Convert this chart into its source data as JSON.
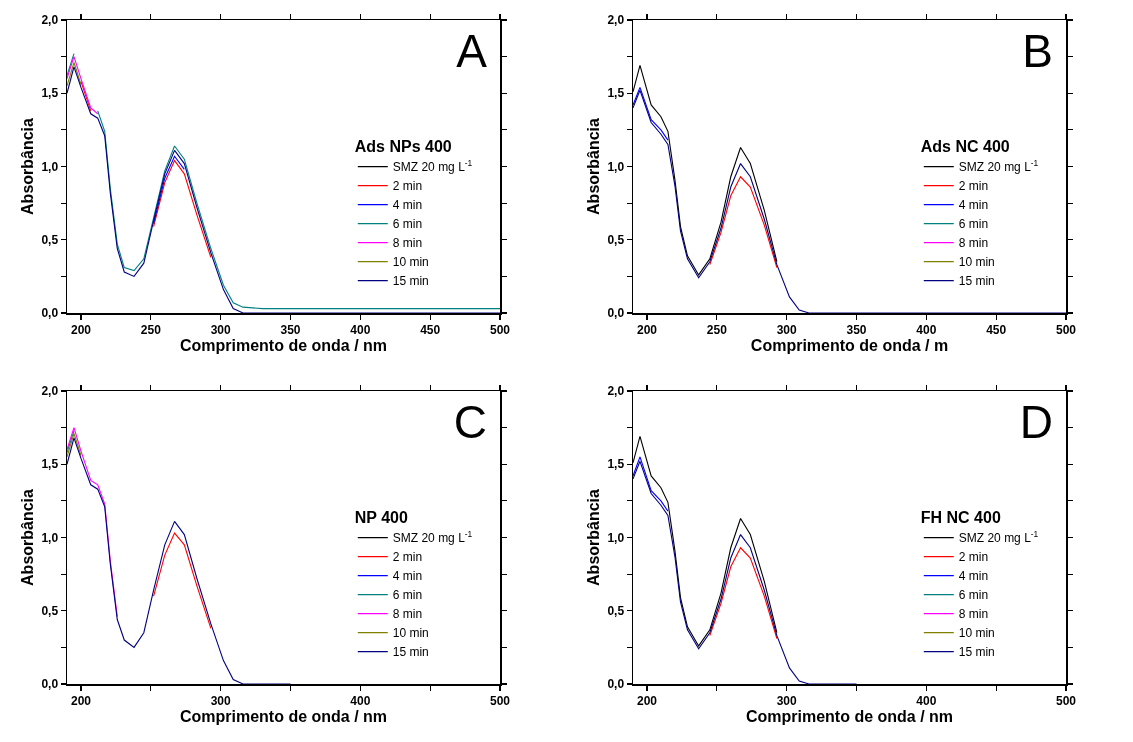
{
  "chart_data": [
    {
      "type": "line",
      "title": "A",
      "legend_title": "Ads NPs 400",
      "xlabel": "Comprimento de onda / nm",
      "ylabel": "Absorbância",
      "legend": "right",
      "grid": false,
      "line_style": "solid",
      "marker": "none",
      "x": [
        190,
        195,
        200,
        207,
        212,
        217,
        221,
        226,
        231,
        238,
        245,
        252,
        260,
        267,
        274,
        283,
        293,
        302,
        309,
        316,
        330,
        500
      ],
      "xlim": [
        190,
        500
      ],
      "xticks": [
        {
          "value": 200,
          "label": "200"
        },
        {
          "value": 250,
          "label": "250"
        },
        {
          "value": 300,
          "label": "300"
        },
        {
          "value": 350,
          "label": "350"
        },
        {
          "value": 400,
          "label": "400"
        },
        {
          "value": 450,
          "label": "450"
        },
        {
          "value": 500,
          "label": "500"
        }
      ],
      "ylim": [
        0,
        2
      ],
      "yticks": [
        {
          "value": 0,
          "label": "0,0"
        },
        {
          "value": 0.25,
          "label": null
        },
        {
          "value": 0.5,
          "label": "0,5"
        },
        {
          "value": 0.75,
          "label": null
        },
        {
          "value": 1,
          "label": "1,0"
        },
        {
          "value": 1.25,
          "label": null
        },
        {
          "value": 1.5,
          "label": "1,5"
        },
        {
          "value": 1.75,
          "label": null
        },
        {
          "value": 2,
          "label": "2,0"
        }
      ],
      "series": [
        {
          "name": "SMZ 20 mg L$^{-1}$",
          "color": "#000000",
          "values": [
            null,
            null,
            null,
            null,
            null,
            null,
            null,
            null,
            null,
            null,
            null,
            null,
            null,
            null,
            null,
            null,
            null,
            null,
            null,
            null,
            null,
            null
          ]
        },
        {
          "name": "2 min",
          "color": "#ff0000",
          "values": [
            null,
            null,
            1.58,
            1.38,
            null,
            null,
            null,
            null,
            null,
            null,
            null,
            0.59,
            0.89,
            1.04,
            0.95,
            0.67,
            0.38,
            null,
            null,
            null,
            null,
            null
          ]
        },
        {
          "name": "4 min",
          "color": "#0000ff",
          "values": [
            null,
            null,
            null,
            null,
            null,
            null,
            null,
            null,
            null,
            null,
            null,
            0.61,
            0.92,
            1.07,
            0.98,
            null,
            null,
            null,
            null,
            null,
            null,
            null
          ]
        },
        {
          "name": "6 min",
          "color": "#008080",
          "values": [
            1.62,
            1.77,
            null,
            null,
            1.38,
            1.24,
            0.85,
            0.47,
            0.31,
            0.29,
            0.37,
            0.65,
            0.97,
            1.14,
            1.05,
            0.75,
            0.44,
            0.19,
            0.07,
            0.04,
            0.03,
            0.03
          ]
        },
        {
          "name": "8 min",
          "color": "#ff00ff",
          "values": [
            1.6,
            1.75,
            1.6,
            1.4,
            1.36,
            null,
            null,
            null,
            null,
            null,
            null,
            null,
            null,
            null,
            null,
            null,
            null,
            null,
            null,
            null,
            null,
            null
          ]
        },
        {
          "name": "10 min",
          "color": "#808000",
          "values": [
            1.55,
            1.71,
            1.56,
            null,
            null,
            null,
            null,
            null,
            null,
            null,
            null,
            null,
            null,
            null,
            null,
            null,
            null,
            null,
            null,
            null,
            null,
            null
          ]
        },
        {
          "name": "15 min",
          "color": "#000080",
          "values": [
            1.5,
            1.68,
            1.54,
            1.36,
            1.33,
            1.21,
            0.82,
            0.44,
            0.28,
            0.25,
            0.34,
            0.63,
            0.95,
            1.11,
            1.02,
            0.72,
            0.41,
            0.16,
            0.03,
            0,
            0,
            0
          ]
        }
      ]
    },
    {
      "type": "line",
      "title": "B",
      "legend_title": "Ads NC 400",
      "xlabel": "Comprimento de onda / m",
      "ylabel": "Absorbância",
      "legend": "right",
      "grid": false,
      "line_style": "solid",
      "marker": "none",
      "x": [
        190,
        195,
        203,
        210,
        215,
        220,
        224,
        229,
        237,
        245,
        253,
        260,
        267,
        274,
        284,
        293,
        302,
        309,
        316,
        330,
        500
      ],
      "xlim": [
        190,
        500
      ],
      "xticks": [
        {
          "value": 200,
          "label": "200"
        },
        {
          "value": 250,
          "label": "250"
        },
        {
          "value": 300,
          "label": "300"
        },
        {
          "value": 350,
          "label": "350"
        },
        {
          "value": 400,
          "label": "400"
        },
        {
          "value": 450,
          "label": "450"
        },
        {
          "value": 500,
          "label": "500"
        }
      ],
      "ylim": [
        0,
        2
      ],
      "yticks": [
        {
          "value": 0,
          "label": "0,0"
        },
        {
          "value": 0.25,
          "label": null
        },
        {
          "value": 0.5,
          "label": "0,5"
        },
        {
          "value": 0.75,
          "label": null
        },
        {
          "value": 1,
          "label": "1,0"
        },
        {
          "value": 1.25,
          "label": null
        },
        {
          "value": 1.5,
          "label": "1,5"
        },
        {
          "value": 1.75,
          "label": null
        },
        {
          "value": 2,
          "label": "2,0"
        }
      ],
      "series": [
        {
          "name": "SMZ 20 mg L$^{-1}$",
          "color": "#000000",
          "values": [
            1.51,
            1.69,
            1.42,
            1.34,
            1.24,
            0.91,
            0.59,
            0.39,
            0.26,
            0.37,
            0.62,
            0.93,
            1.13,
            1.02,
            0.7,
            0.35,
            null,
            null,
            null,
            null,
            null
          ]
        },
        {
          "name": "2 min",
          "color": "#ff0000",
          "values": [
            null,
            null,
            null,
            null,
            null,
            null,
            null,
            null,
            null,
            0.33,
            0.55,
            0.8,
            0.93,
            0.86,
            0.6,
            0.31,
            null,
            null,
            null,
            null,
            null
          ]
        },
        {
          "name": "4 min",
          "color": "#0000ff",
          "values": [
            1.42,
            1.54,
            1.32,
            1.25,
            1.18,
            null,
            null,
            null,
            null,
            null,
            null,
            null,
            null,
            null,
            null,
            null,
            null,
            null,
            null,
            null,
            null
          ]
        },
        {
          "name": "6 min",
          "color": "#008080",
          "values": [
            null,
            null,
            null,
            null,
            null,
            null,
            null,
            null,
            null,
            null,
            null,
            null,
            null,
            null,
            null,
            null,
            null,
            null,
            null,
            null,
            null
          ]
        },
        {
          "name": "8 min",
          "color": "#ff00ff",
          "values": [
            null,
            null,
            null,
            null,
            null,
            null,
            null,
            null,
            null,
            null,
            null,
            null,
            null,
            null,
            null,
            null,
            null,
            null,
            null,
            null,
            null
          ]
        },
        {
          "name": "10 min",
          "color": "#808000",
          "values": [
            null,
            null,
            null,
            null,
            null,
            null,
            null,
            null,
            null,
            null,
            null,
            null,
            null,
            null,
            null,
            null,
            null,
            null,
            null,
            null,
            null
          ]
        },
        {
          "name": "15 min",
          "color": "#000080",
          "values": [
            1.4,
            1.52,
            1.3,
            1.22,
            1.15,
            0.87,
            0.56,
            0.37,
            0.24,
            0.35,
            0.58,
            0.86,
            1.02,
            0.93,
            0.64,
            0.33,
            0.11,
            0.02,
            0,
            0,
            0
          ]
        }
      ]
    },
    {
      "type": "line",
      "title": "C",
      "legend_title": "NP 400",
      "xlabel": "Comprimento de onda / nm",
      "ylabel": "Absorbância",
      "legend": "right",
      "grid": false,
      "line_style": "solid",
      "marker": "none",
      "x": [
        190,
        195,
        200,
        207,
        212,
        217,
        221,
        226,
        231,
        238,
        245,
        252,
        260,
        267,
        274,
        283,
        293,
        302,
        309,
        316,
        330,
        350
      ],
      "xlim": [
        190,
        500
      ],
      "xticks": [
        {
          "value": 200,
          "label": "200"
        },
        {
          "value": 250,
          "label": null
        },
        {
          "value": 300,
          "label": "300"
        },
        {
          "value": 350,
          "label": null
        },
        {
          "value": 400,
          "label": "400"
        },
        {
          "value": 450,
          "label": null
        },
        {
          "value": 500,
          "label": "500"
        }
      ],
      "ylim": [
        0,
        2
      ],
      "yticks": [
        {
          "value": 0,
          "label": "0,0"
        },
        {
          "value": 0.25,
          "label": null
        },
        {
          "value": 0.5,
          "label": "0,5"
        },
        {
          "value": 0.75,
          "label": null
        },
        {
          "value": 1,
          "label": "1,0"
        },
        {
          "value": 1.25,
          "label": null
        },
        {
          "value": 1.5,
          "label": "1,5"
        },
        {
          "value": 1.75,
          "label": null
        },
        {
          "value": 2,
          "label": "2,0"
        }
      ],
      "series": [
        {
          "name": "SMZ 20 mg L$^{-1}$",
          "color": "#000000",
          "values": [
            null,
            null,
            null,
            null,
            null,
            null,
            null,
            null,
            null,
            null,
            null,
            null,
            null,
            null,
            null,
            null,
            null,
            null,
            null,
            null,
            null,
            null
          ]
        },
        {
          "name": "2 min",
          "color": "#ff0000",
          "values": [
            null,
            null,
            null,
            null,
            null,
            null,
            null,
            null,
            null,
            null,
            null,
            0.6,
            0.88,
            1.03,
            0.95,
            0.67,
            0.38,
            null,
            null,
            null,
            null,
            null
          ]
        },
        {
          "name": "4 min",
          "color": "#0000ff",
          "values": [
            null,
            null,
            null,
            null,
            null,
            null,
            null,
            null,
            null,
            null,
            null,
            null,
            null,
            null,
            null,
            null,
            null,
            null,
            null,
            null,
            null,
            null
          ]
        },
        {
          "name": "6 min",
          "color": "#008080",
          "values": [
            1.58,
            1.73,
            null,
            null,
            null,
            null,
            null,
            null,
            null,
            null,
            null,
            null,
            null,
            null,
            null,
            null,
            null,
            null,
            null,
            null,
            null,
            null
          ]
        },
        {
          "name": "8 min",
          "color": "#ff00ff",
          "values": [
            1.6,
            1.75,
            1.59,
            1.39,
            1.36,
            1.23,
            0.84,
            0.46,
            null,
            null,
            null,
            null,
            null,
            null,
            null,
            null,
            null,
            null,
            null,
            null,
            null,
            null
          ]
        },
        {
          "name": "10 min",
          "color": "#808000",
          "values": [
            1.55,
            1.71,
            1.56,
            null,
            null,
            null,
            null,
            null,
            null,
            null,
            null,
            null,
            null,
            null,
            null,
            null,
            null,
            null,
            null,
            null,
            null,
            null
          ]
        },
        {
          "name": "15 min",
          "color": "#000080",
          "values": [
            1.5,
            1.68,
            1.54,
            1.36,
            1.33,
            1.21,
            0.82,
            0.44,
            0.3,
            0.25,
            0.35,
            0.64,
            0.95,
            1.11,
            1.02,
            0.72,
            0.41,
            0.16,
            0.03,
            0,
            0,
            0
          ]
        }
      ]
    },
    {
      "type": "line",
      "title": "D",
      "legend_title": "FH NC 400",
      "xlabel": "Comprimento de onda / nm",
      "ylabel": "Absorbância",
      "legend": "right",
      "grid": false,
      "line_style": "solid",
      "marker": "none",
      "x": [
        190,
        195,
        203,
        210,
        215,
        220,
        224,
        229,
        237,
        245,
        253,
        260,
        267,
        274,
        284,
        293,
        302,
        309,
        316,
        330,
        350
      ],
      "xlim": [
        190,
        500
      ],
      "xticks": [
        {
          "value": 200,
          "label": "200"
        },
        {
          "value": 250,
          "label": null
        },
        {
          "value": 300,
          "label": "300"
        },
        {
          "value": 350,
          "label": null
        },
        {
          "value": 400,
          "label": "400"
        },
        {
          "value": 450,
          "label": null
        },
        {
          "value": 500,
          "label": "500"
        }
      ],
      "ylim": [
        0,
        2
      ],
      "yticks": [
        {
          "value": 0,
          "label": "0,0"
        },
        {
          "value": 0.25,
          "label": null
        },
        {
          "value": 0.5,
          "label": "0,5"
        },
        {
          "value": 0.75,
          "label": null
        },
        {
          "value": 1,
          "label": "1,0"
        },
        {
          "value": 1.25,
          "label": null
        },
        {
          "value": 1.5,
          "label": "1,5"
        },
        {
          "value": 1.75,
          "label": null
        },
        {
          "value": 2,
          "label": "2,0"
        }
      ],
      "series": [
        {
          "name": "SMZ 20 mg L$^{-1}$",
          "color": "#000000",
          "values": [
            1.51,
            1.69,
            1.42,
            1.34,
            1.24,
            0.91,
            0.59,
            0.39,
            0.26,
            0.37,
            0.62,
            0.93,
            1.13,
            1.02,
            0.7,
            0.35,
            null,
            null,
            null,
            null,
            null
          ]
        },
        {
          "name": "2 min",
          "color": "#ff0000",
          "values": [
            null,
            null,
            null,
            null,
            null,
            null,
            null,
            null,
            null,
            0.33,
            0.55,
            0.8,
            0.93,
            0.86,
            0.6,
            0.31,
            null,
            null,
            null,
            null,
            null
          ]
        },
        {
          "name": "4 min",
          "color": "#0000ff",
          "values": [
            1.42,
            1.55,
            1.32,
            1.25,
            1.18,
            null,
            null,
            null,
            null,
            null,
            null,
            null,
            null,
            null,
            null,
            null,
            null,
            null,
            null,
            null,
            null
          ]
        },
        {
          "name": "6 min",
          "color": "#008080",
          "values": [
            null,
            null,
            null,
            null,
            null,
            null,
            null,
            null,
            null,
            null,
            null,
            null,
            null,
            null,
            null,
            null,
            null,
            null,
            null,
            null,
            null
          ]
        },
        {
          "name": "8 min",
          "color": "#ff00ff",
          "values": [
            null,
            null,
            null,
            null,
            null,
            null,
            null,
            null,
            null,
            null,
            null,
            null,
            null,
            null,
            null,
            null,
            null,
            null,
            null,
            null,
            null
          ]
        },
        {
          "name": "10 min",
          "color": "#808000",
          "values": [
            null,
            null,
            null,
            null,
            null,
            null,
            null,
            null,
            null,
            null,
            null,
            null,
            null,
            null,
            null,
            null,
            null,
            null,
            null,
            null,
            null
          ]
        },
        {
          "name": "15 min",
          "color": "#000080",
          "values": [
            1.4,
            1.52,
            1.3,
            1.22,
            1.15,
            0.87,
            0.56,
            0.37,
            0.24,
            0.35,
            0.58,
            0.86,
            1.02,
            0.93,
            0.64,
            0.33,
            0.11,
            0.02,
            0,
            0,
            0
          ]
        }
      ]
    }
  ]
}
